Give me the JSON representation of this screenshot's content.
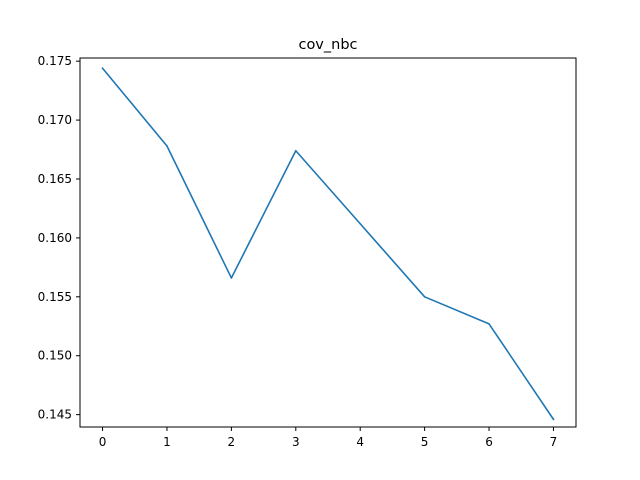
{
  "chart_data": {
    "type": "line",
    "title": "cov_nbc",
    "xlabel": "",
    "ylabel": "",
    "x": [
      0,
      1,
      2,
      3,
      4,
      5,
      6,
      7
    ],
    "series": [
      {
        "values": [
          0.1744,
          0.1678,
          0.1566,
          0.1674,
          0.1612,
          0.155,
          0.1527,
          0.1446
        ],
        "color": "#1f77b4"
      }
    ],
    "xlim": [
      -0.35,
      7.35
    ],
    "ylim": [
      0.14395,
      0.17527
    ],
    "xticks": [
      0,
      1,
      2,
      3,
      4,
      5,
      6,
      7
    ],
    "yticks": [
      0.145,
      0.15,
      0.155,
      0.16,
      0.165,
      0.17,
      0.175
    ],
    "ytick_labels": [
      "0.145",
      "0.150",
      "0.155",
      "0.160",
      "0.165",
      "0.170",
      "0.175"
    ],
    "grid": false,
    "legend": "none"
  }
}
